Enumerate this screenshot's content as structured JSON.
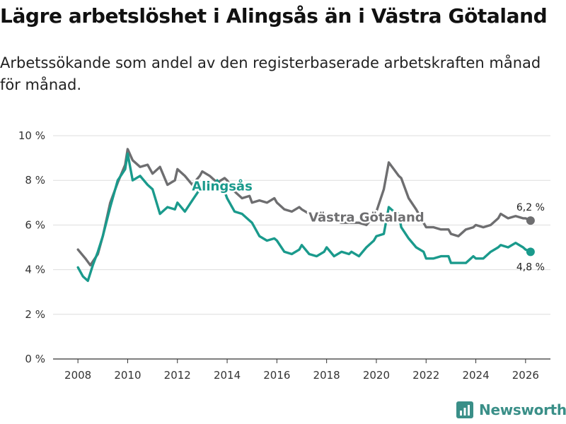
{
  "title": "Lägre arbetslöshet i Alingsås än i Västra Götaland",
  "subtitle": "Arbetssökande som andel av den registerbaserade arbetskraften månad för månad.",
  "brand": "Newsworthy",
  "colors": {
    "alingsas": "#1a9a8c",
    "vg": "#6e6e70",
    "grid": "#dddddd",
    "brand": "#3a8f88"
  },
  "chart_data": {
    "type": "line",
    "title": "Lägre arbetslöshet i Alingsås än i Västra Götaland",
    "ylabel": "",
    "xlabel": "",
    "ylim": [
      0,
      10
    ],
    "xlim": [
      2007.0,
      2027.0
    ],
    "y_ticks": [
      0,
      2,
      4,
      6,
      8,
      10
    ],
    "y_tick_labels": [
      "0 %",
      "2 %",
      "4 %",
      "6 %",
      "8 %",
      "10 %"
    ],
    "x_ticks": [
      2008,
      2010,
      2012,
      2014,
      2016,
      2018,
      2020,
      2022,
      2024,
      2026
    ],
    "x_tick_labels": [
      "2008",
      "2010",
      "2012",
      "2014",
      "2016",
      "2018",
      "2020",
      "2022",
      "2024",
      "2026"
    ],
    "grid": true,
    "series": [
      {
        "name": "Västra Götaland",
        "label": "Västra Götaland",
        "end_label": "6,2 %",
        "x": [
          2008.0,
          2008.3,
          2008.5,
          2008.8,
          2009.0,
          2009.3,
          2009.6,
          2009.9,
          2010.0,
          2010.2,
          2010.5,
          2010.8,
          2011.0,
          2011.3,
          2011.6,
          2011.9,
          2012.0,
          2012.3,
          2012.6,
          2012.9,
          2013.0,
          2013.3,
          2013.6,
          2013.9,
          2014.0,
          2014.3,
          2014.6,
          2014.9,
          2015.0,
          2015.3,
          2015.6,
          2015.9,
          2016.0,
          2016.3,
          2016.6,
          2016.9,
          2017.0,
          2017.3,
          2017.6,
          2017.9,
          2018.0,
          2018.3,
          2018.6,
          2018.9,
          2019.0,
          2019.3,
          2019.6,
          2019.9,
          2020.0,
          2020.3,
          2020.5,
          2020.7,
          2020.9,
          2021.0,
          2021.3,
          2021.6,
          2021.9,
          2022.0,
          2022.3,
          2022.6,
          2022.9,
          2023.0,
          2023.3,
          2023.6,
          2023.9,
          2024.0,
          2024.3,
          2024.6,
          2024.9,
          2025.0,
          2025.3,
          2025.6,
          2025.9,
          2026.0,
          2026.2
        ],
        "values": [
          4.9,
          4.5,
          4.2,
          4.7,
          5.5,
          7.0,
          7.9,
          8.7,
          9.4,
          8.9,
          8.6,
          8.7,
          8.3,
          8.6,
          7.8,
          8.0,
          8.5,
          8.2,
          7.8,
          8.2,
          8.4,
          8.2,
          7.9,
          8.1,
          8.0,
          7.5,
          7.2,
          7.3,
          7.0,
          7.1,
          7.0,
          7.2,
          7.0,
          6.7,
          6.6,
          6.8,
          6.7,
          6.5,
          6.4,
          6.5,
          6.4,
          6.2,
          6.1,
          6.1,
          6.1,
          6.1,
          6.0,
          6.4,
          6.6,
          7.6,
          8.8,
          8.5,
          8.2,
          8.1,
          7.2,
          6.7,
          6.1,
          5.9,
          5.9,
          5.8,
          5.8,
          5.6,
          5.5,
          5.8,
          5.9,
          6.0,
          5.9,
          6.0,
          6.3,
          6.5,
          6.3,
          6.4,
          6.3,
          6.3,
          6.2
        ]
      },
      {
        "name": "Alingsås",
        "label": "Alingsås",
        "end_label": "4,8 %",
        "x": [
          2008.0,
          2008.2,
          2008.4,
          2008.6,
          2008.8,
          2009.0,
          2009.3,
          2009.6,
          2009.9,
          2010.0,
          2010.2,
          2010.5,
          2010.8,
          2011.0,
          2011.3,
          2011.6,
          2011.9,
          2012.0,
          2012.3,
          2012.6,
          2012.9,
          2013.0,
          2013.3,
          2013.6,
          2013.9,
          2014.0,
          2014.3,
          2014.6,
          2014.9,
          2015.0,
          2015.3,
          2015.6,
          2015.9,
          2016.0,
          2016.3,
          2016.6,
          2016.9,
          2017.0,
          2017.3,
          2017.6,
          2017.9,
          2018.0,
          2018.3,
          2018.6,
          2018.9,
          2019.0,
          2019.3,
          2019.6,
          2019.9,
          2020.0,
          2020.3,
          2020.5,
          2020.7,
          2020.9,
          2021.0,
          2021.3,
          2021.6,
          2021.9,
          2022.0,
          2022.3,
          2022.6,
          2022.9,
          2023.0,
          2023.3,
          2023.6,
          2023.9,
          2024.0,
          2024.3,
          2024.6,
          2024.9,
          2025.0,
          2025.3,
          2025.6,
          2025.9,
          2026.0,
          2026.2
        ],
        "values": [
          4.1,
          3.7,
          3.5,
          4.2,
          4.8,
          5.5,
          6.8,
          8.0,
          8.5,
          9.2,
          8.0,
          8.2,
          7.8,
          7.6,
          6.5,
          6.8,
          6.7,
          7.0,
          6.6,
          7.1,
          7.6,
          7.8,
          7.6,
          8.0,
          7.5,
          7.2,
          6.6,
          6.5,
          6.2,
          6.1,
          5.5,
          5.3,
          5.4,
          5.3,
          4.8,
          4.7,
          4.9,
          5.1,
          4.7,
          4.6,
          4.8,
          5.0,
          4.6,
          4.8,
          4.7,
          4.8,
          4.6,
          5.0,
          5.3,
          5.5,
          5.6,
          6.8,
          6.6,
          6.5,
          5.9,
          5.4,
          5.0,
          4.8,
          4.5,
          4.5,
          4.6,
          4.6,
          4.3,
          4.3,
          4.3,
          4.6,
          4.5,
          4.5,
          4.8,
          5.0,
          5.1,
          5.0,
          5.2,
          5.0,
          4.9,
          4.8
        ]
      }
    ]
  }
}
